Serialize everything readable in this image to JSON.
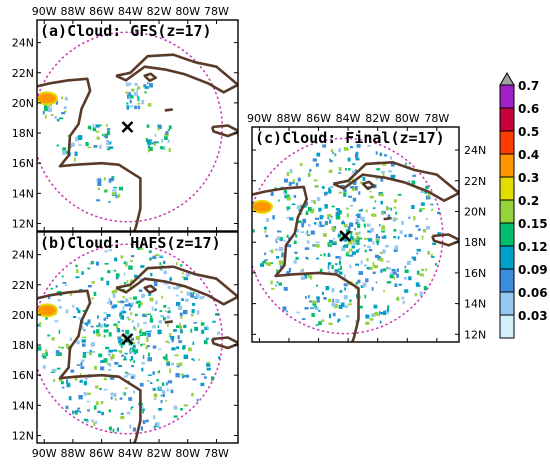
{
  "chart_data": [
    {
      "type": "heatmap",
      "title": "(a)Cloud: GFS(z=17)",
      "x_ticks": [
        "90W",
        "88W",
        "86W",
        "84W",
        "82W",
        "80W",
        "78W"
      ],
      "y_ticks": [
        "24N",
        "22N",
        "20N",
        "18N",
        "16N",
        "14N",
        "12N"
      ],
      "xlim_deg": [
        -90.5,
        -76.5
      ],
      "ylim_deg": [
        11.5,
        25.5
      ],
      "storm_center": {
        "lon": -84.2,
        "lat": 18.4
      },
      "domain_radius_deg": 6.6
    },
    {
      "type": "heatmap",
      "title": "(b)Cloud: HAFS(z=17)",
      "x_ticks": [
        "90W",
        "88W",
        "86W",
        "84W",
        "82W",
        "80W",
        "78W"
      ],
      "y_ticks": [
        "24N",
        "22N",
        "20N",
        "18N",
        "16N",
        "14N",
        "12N"
      ],
      "xlim_deg": [
        -90.5,
        -76.5
      ],
      "ylim_deg": [
        11.5,
        25.5
      ],
      "storm_center": {
        "lon": -84.2,
        "lat": 18.4
      },
      "domain_radius_deg": 6.6
    },
    {
      "type": "heatmap",
      "title": "(c)Cloud: Final(z=17)",
      "x_ticks": [
        "90W",
        "88W",
        "86W",
        "84W",
        "82W",
        "80W",
        "78W"
      ],
      "y_ticks": [
        "24N",
        "22N",
        "20N",
        "18N",
        "16N",
        "14N",
        "12N"
      ],
      "xlim_deg": [
        -90.5,
        -76.5
      ],
      "ylim_deg": [
        11.5,
        25.5
      ],
      "storm_center": {
        "lon": -84.2,
        "lat": 18.4
      },
      "domain_radius_deg": 6.6
    }
  ],
  "colorbar": {
    "levels": [
      "0.7",
      "0.6",
      "0.5",
      "0.4",
      "0.3",
      "0.2",
      "0.15",
      "0.12",
      "0.09",
      "0.06",
      "0.03"
    ],
    "colors": [
      "#a0a0a0",
      "#a020c8",
      "#c8003c",
      "#ff3c00",
      "#ff9600",
      "#e1dc00",
      "#96d23c",
      "#00be6e",
      "#00a0c8",
      "#3c8cdc",
      "#96c8f0",
      "#d2f0fa"
    ]
  }
}
